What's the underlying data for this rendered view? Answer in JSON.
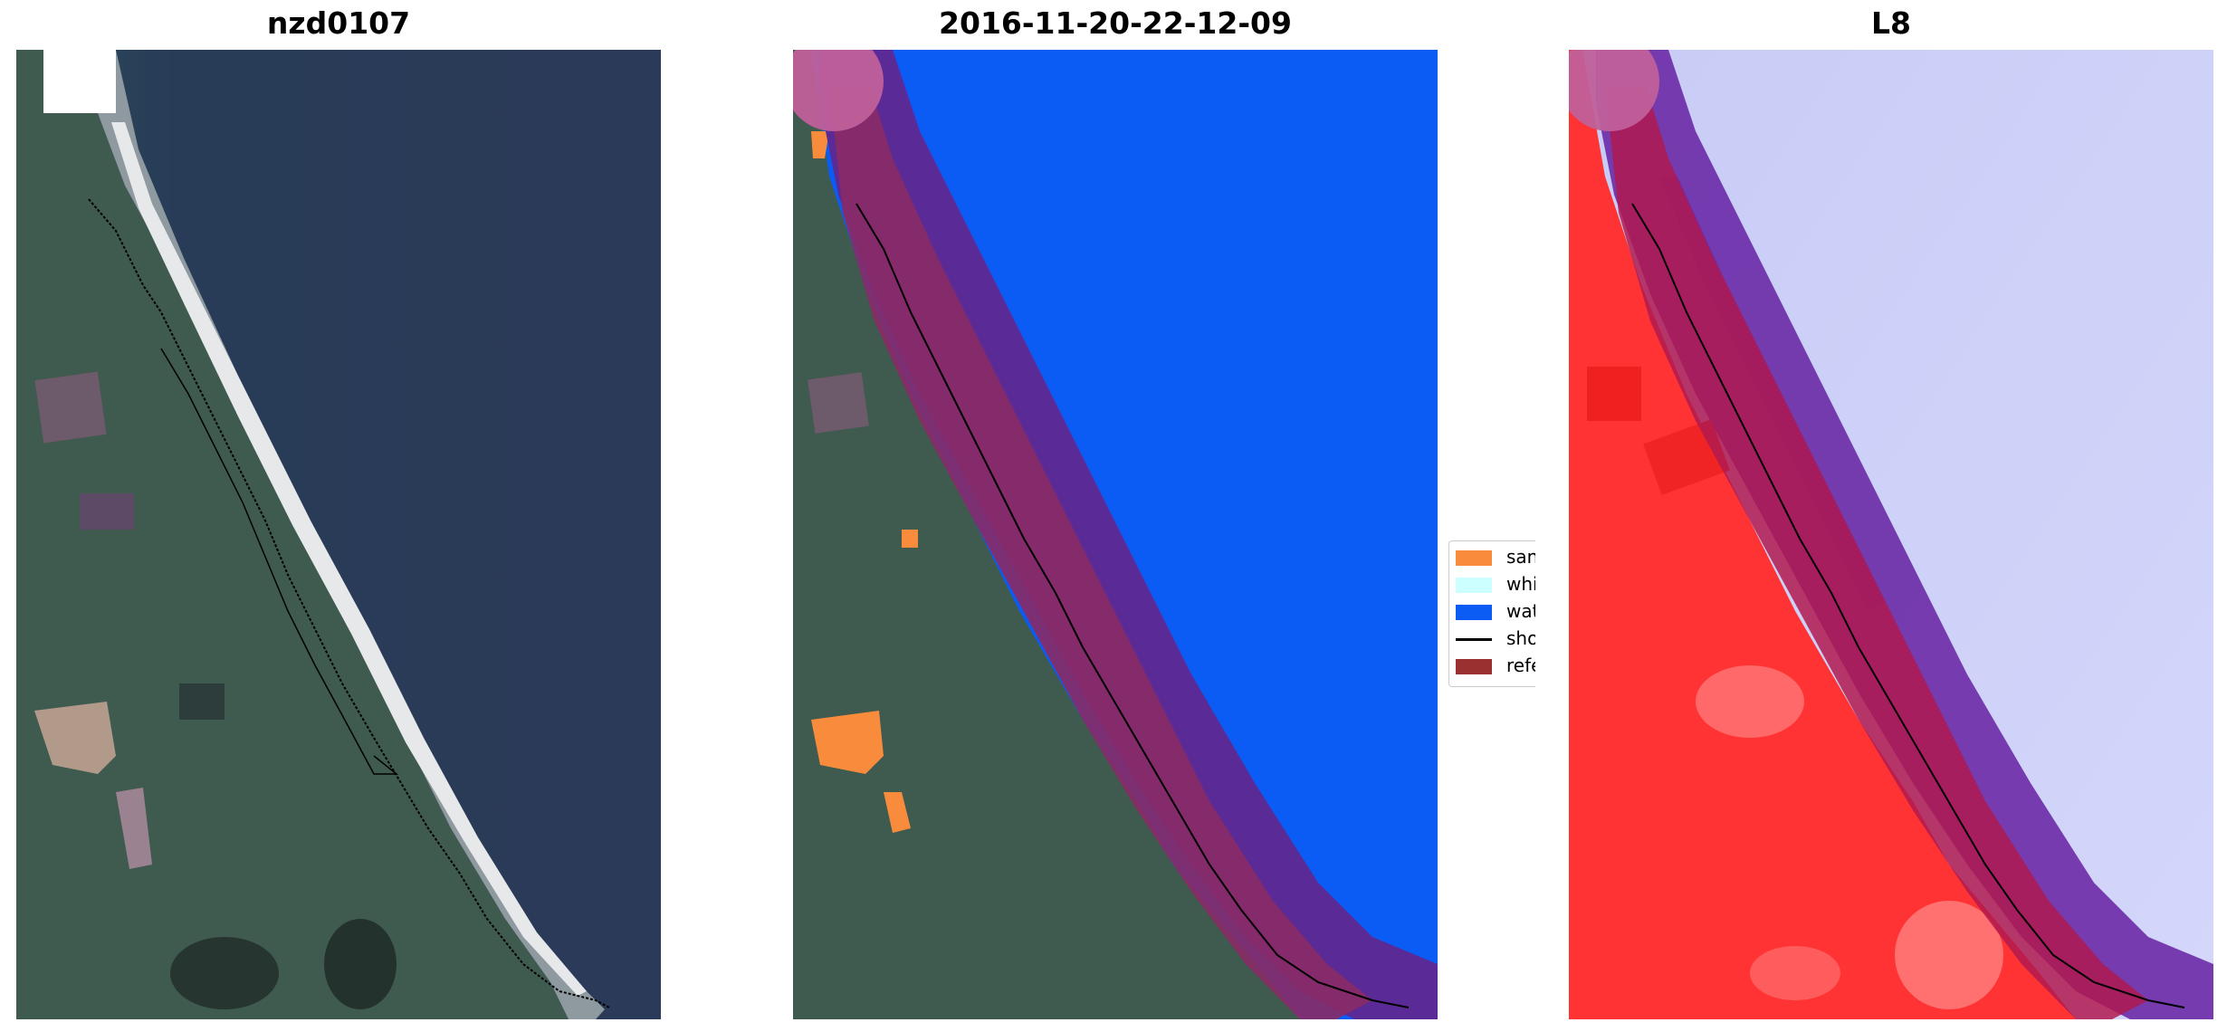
{
  "panels": [
    {
      "title": "nzd0107"
    },
    {
      "title": "2016-11-20-22-12-09"
    },
    {
      "title": "L8"
    }
  ],
  "legend": {
    "items": [
      {
        "label": "sand",
        "color": "#f98c3c"
      },
      {
        "label": "whitewater",
        "color": "#ccffff"
      },
      {
        "label": "water",
        "color": "#0a5cf4"
      },
      {
        "label": "shoreline",
        "color": "#000000"
      },
      {
        "label": "reference shoreline buffer",
        "color": "#9a3030"
      }
    ]
  },
  "colors": {
    "ocean_rgb": "#2a3a55",
    "land_rgb": "#3e5a4c",
    "water_class": "#0a5cf4",
    "buffer_overlay": "#8a1a6a",
    "index_positive": "#ff2a2a",
    "index_negative": "#c8ccf8"
  }
}
